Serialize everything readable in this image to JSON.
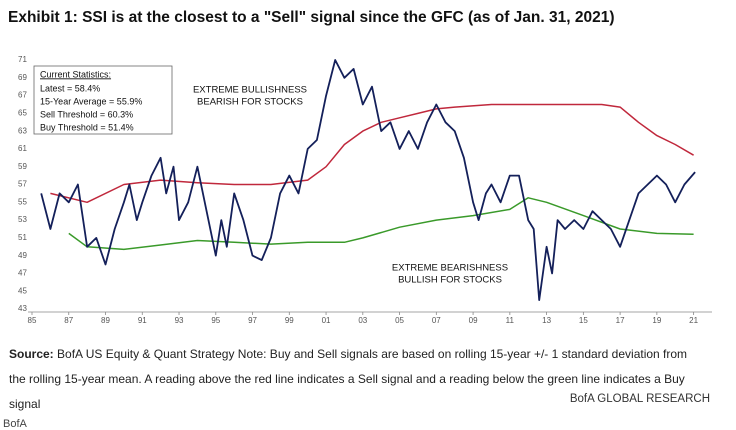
{
  "chart_data": {
    "type": "line",
    "title": "Exhibit 1: SSI is at the closest to a \"Sell\" signal since the GFC (as of Jan. 31, 2021)",
    "stats_title": "Current Statistics:",
    "stats": [
      "Latest = 58.4%",
      "15-Year Average = 55.9%",
      "Sell Threshold = 60.3%",
      "Buy Threshold = 51.4%"
    ],
    "annotations": [
      [
        "EXTREME BULLISHNESS",
        "BEARISH FOR STOCKS"
      ],
      [
        "EXTREME BEARISHNESS",
        "BULLISH FOR STOCKS"
      ]
    ],
    "source_label": "Source:",
    "source": "BofA US Equity & Quant Strategy Note: Buy and Sell signals are based on rolling 15-year +/- 1 standard deviation from the rolling 15-year mean. A reading above the red line indicates a Sell signal and a reading below the green line indicates a Buy signal",
    "brand": "BofA GLOBAL RESEARCH",
    "footer": "BofA",
    "xlim": [
      1985,
      2022
    ],
    "xticks": [
      {
        "value": 1985,
        "label": "85"
      },
      {
        "value": 1987,
        "label": "87"
      },
      {
        "value": 1989,
        "label": "89"
      },
      {
        "value": 1991,
        "label": "91"
      },
      {
        "value": 1993,
        "label": "93"
      },
      {
        "value": 1995,
        "label": "95"
      },
      {
        "value": 1997,
        "label": "97"
      },
      {
        "value": 1999,
        "label": "99"
      },
      {
        "value": 2001,
        "label": "01"
      },
      {
        "value": 2003,
        "label": "03"
      },
      {
        "value": 2005,
        "label": "05"
      },
      {
        "value": 2007,
        "label": "07"
      },
      {
        "value": 2009,
        "label": "09"
      },
      {
        "value": 2011,
        "label": "11"
      },
      {
        "value": 2013,
        "label": "13"
      },
      {
        "value": 2015,
        "label": "15"
      },
      {
        "value": 2017,
        "label": "17"
      },
      {
        "value": 2019,
        "label": "19"
      },
      {
        "value": 2021,
        "label": "21"
      }
    ],
    "ylim": [
      43,
      71
    ],
    "yticks": [
      43,
      45,
      47,
      49,
      51,
      53,
      55,
      57,
      59,
      61,
      63,
      65,
      67,
      69,
      71
    ],
    "series": [
      {
        "name": "SSI",
        "color": "#14205a",
        "x": [
          1985.5,
          1986,
          1986.5,
          1987,
          1987.5,
          1988,
          1988.5,
          1989,
          1989.5,
          1990,
          1990.3,
          1990.7,
          1991,
          1991.5,
          1992,
          1992.3,
          1992.7,
          1993,
          1993.5,
          1994,
          1994.5,
          1995,
          1995.3,
          1995.6,
          1996,
          1996.5,
          1997,
          1997.5,
          1998,
          1998.5,
          1999,
          1999.5,
          2000,
          2000.5,
          2001,
          2001.5,
          2002,
          2002.5,
          2003,
          2003.5,
          2004,
          2004.5,
          2005,
          2005.5,
          2006,
          2006.5,
          2007,
          2007.5,
          2008,
          2008.5,
          2009,
          2009.3,
          2009.7,
          2010,
          2010.5,
          2011,
          2011.5,
          2012,
          2012.3,
          2012.6,
          2013,
          2013.3,
          2013.6,
          2014,
          2014.5,
          2015,
          2015.5,
          2016,
          2016.5,
          2017,
          2017.5,
          2018,
          2018.5,
          2019,
          2019.5,
          2020,
          2020.5,
          2021.08
        ],
        "values": [
          56,
          52,
          56,
          55,
          57,
          50,
          51,
          48,
          52,
          55,
          57,
          53,
          55,
          58,
          60,
          56,
          59,
          53,
          55,
          59,
          54,
          49,
          53,
          50,
          56,
          53,
          49,
          48.5,
          51,
          56,
          58,
          56,
          61,
          62,
          67,
          71,
          69,
          70,
          66,
          68,
          63,
          64,
          61,
          63,
          61,
          64,
          66,
          64,
          63,
          60,
          55,
          53,
          56,
          57,
          55,
          58,
          58,
          53,
          52,
          44,
          50,
          47,
          53,
          52,
          53,
          52,
          54,
          53,
          52,
          50,
          53,
          56,
          57,
          58,
          57,
          55,
          57,
          58.4
        ]
      },
      {
        "name": "Sell Threshold",
        "color": "#c0283c",
        "x": [
          1986,
          1988,
          1990,
          1992,
          1994,
          1996,
          1998,
          2000,
          2001,
          2002,
          2003,
          2004,
          2005,
          2006,
          2007,
          2008,
          2010,
          2012,
          2014,
          2016,
          2017,
          2018,
          2019,
          2020,
          2021
        ],
        "values": [
          56,
          55,
          57,
          57.5,
          57.2,
          57,
          57,
          57.5,
          59,
          61.5,
          63,
          64,
          64.5,
          65,
          65.5,
          65.7,
          66,
          66,
          66,
          66,
          65.7,
          64,
          62.5,
          61.5,
          60.3
        ]
      },
      {
        "name": "Buy Threshold",
        "color": "#3a9a2a",
        "x": [
          1987,
          1988,
          1990,
          1992,
          1994,
          1996,
          1998,
          2000,
          2002,
          2003,
          2005,
          2007,
          2009,
          2011,
          2012,
          2013,
          2015,
          2017,
          2019,
          2021
        ],
        "values": [
          51.5,
          50,
          49.7,
          50.2,
          50.7,
          50.5,
          50.3,
          50.5,
          50.5,
          51,
          52.2,
          53,
          53.5,
          54.2,
          55.5,
          55,
          53.5,
          52,
          51.5,
          51.4
        ]
      }
    ]
  }
}
